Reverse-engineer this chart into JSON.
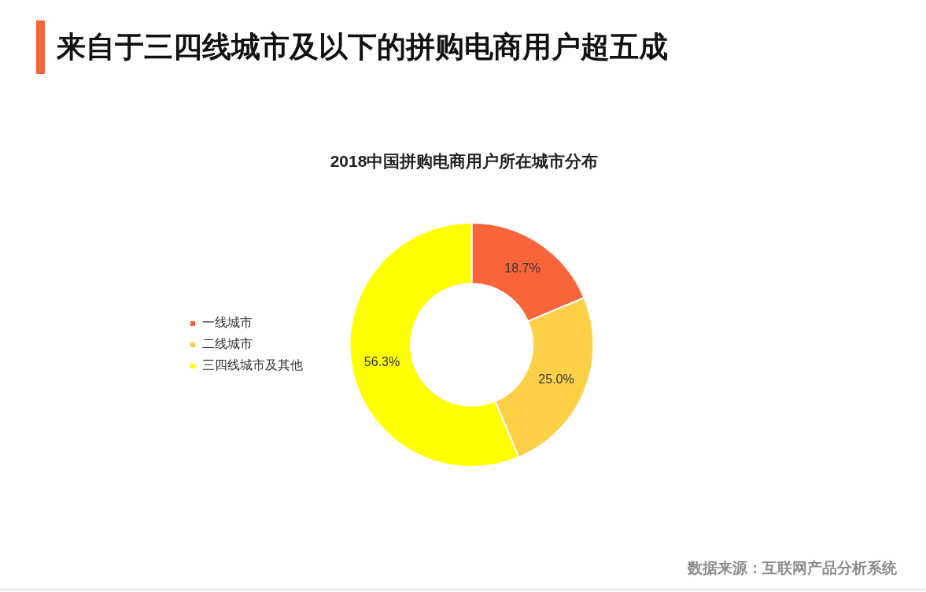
{
  "chart_data": {
    "type": "donut",
    "title": "来自于三四线城市及以下的拼购电商用户超五成",
    "subtitle": "2018中国拼购电商用户所在城市分布",
    "categories": [
      "一线城市",
      "二线城市",
      "三四线城市及其他"
    ],
    "values": [
      18.7,
      25.0,
      56.3
    ],
    "value_labels": [
      "18.7%",
      "25.0%",
      "56.3%"
    ],
    "colors": [
      "#f9653a",
      "#fdd048",
      "#ffff00"
    ],
    "legend": "left",
    "annotations": [
      "数据来源：互联网产品分析系统"
    ]
  }
}
